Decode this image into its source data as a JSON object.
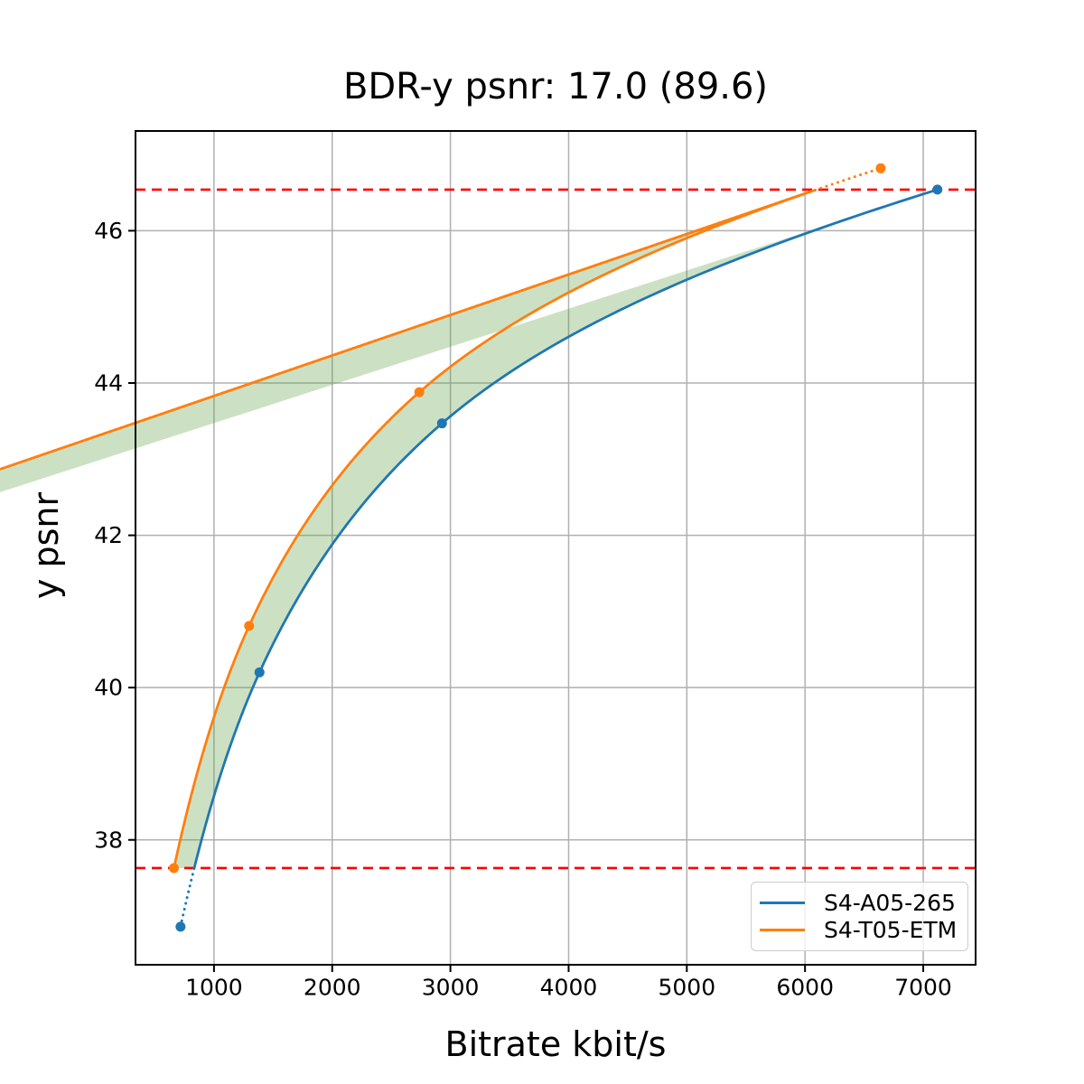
{
  "figure": {
    "background": "#ffffff",
    "grid_color": "#b0b0b0",
    "spine_color": "#000000",
    "tick_label_color": "#000000"
  },
  "chart_data": {
    "type": "line",
    "title": "BDR-y psnr: 17.0 (89.6)",
    "xlabel": "Bitrate kbit/s",
    "ylabel": "y psnr",
    "xlim": [
      336,
      7443
    ],
    "ylim": [
      36.36,
      47.31
    ],
    "xticks": [
      1000,
      2000,
      3000,
      4000,
      5000,
      6000,
      7000
    ],
    "yticks": [
      38,
      40,
      42,
      44,
      46
    ],
    "grid": true,
    "legend_position": "lower right",
    "series": [
      {
        "name": "S4-A05-265",
        "color": "#1f77b4",
        "x": [
          717,
          1385,
          2929,
          7120
        ],
        "y": [
          36.86,
          40.2,
          43.47,
          46.54
        ]
      },
      {
        "name": "S4-T05-ETM",
        "color": "#ff7f0e",
        "x": [
          661,
          1297,
          2737,
          6640
        ],
        "y": [
          37.63,
          40.81,
          43.88,
          46.82
        ]
      }
    ],
    "hlines": {
      "values": [
        37.63,
        46.54
      ],
      "color": "#ff0000",
      "style": "dashed"
    },
    "fill_between": {
      "lower_bound": 37.63,
      "upper_bound": 46.54,
      "color": "#569b3c",
      "opacity": 0.3
    },
    "interpolation": "monotone-cubic-in-log-bitrate",
    "out_of_range_style": "dotted"
  },
  "legend": {
    "items": [
      {
        "label": "S4-A05-265",
        "color": "#1f77b4"
      },
      {
        "label": "S4-T05-ETM",
        "color": "#ff7f0e"
      }
    ]
  }
}
